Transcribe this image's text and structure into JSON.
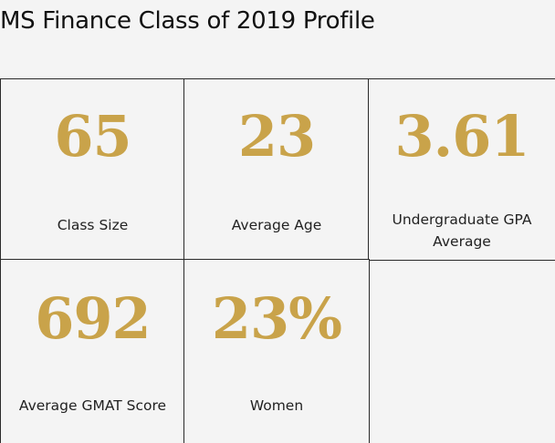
{
  "title": "MS Finance Class of 2019 Profile",
  "colors": {
    "accent": "#c9a34a",
    "text": "#222222",
    "border": "#2a2a2a",
    "background": "#f4f4f4"
  },
  "stats": [
    {
      "value": "65",
      "label": "Class Size"
    },
    {
      "value": "23",
      "label": "Average Age"
    },
    {
      "value": "3.61",
      "label": "Undergraduate GPA Average"
    },
    {
      "value": "692",
      "label": "Average GMAT Score"
    },
    {
      "value": "23%",
      "label": "Women"
    }
  ]
}
